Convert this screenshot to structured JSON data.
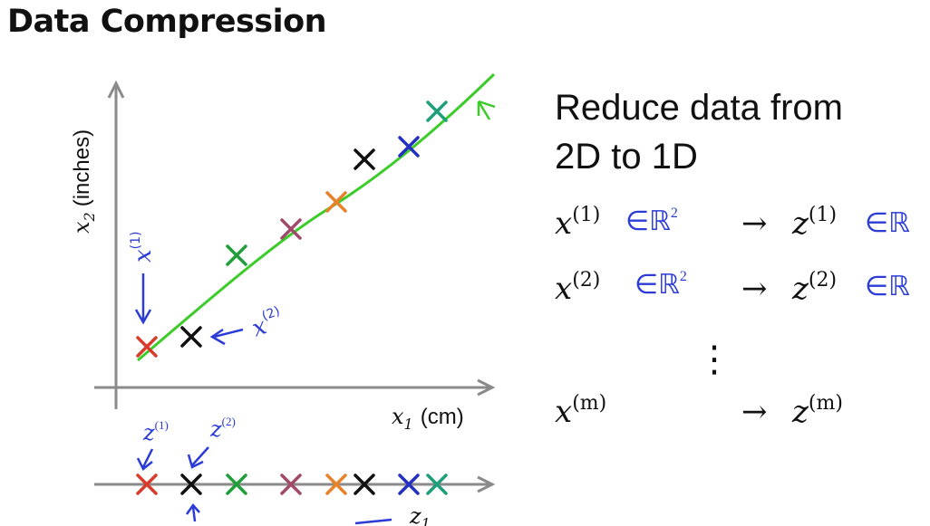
{
  "title": "Data Compression",
  "plot": {
    "y_label_var": "x",
    "y_label_sub": "2",
    "y_label_unit": "(inches)",
    "x_label_var": "x",
    "x_label_sub": "1",
    "x_label_unit": "(cm)",
    "z_axis_label_var": "z",
    "z_axis_label_sub": "1"
  },
  "annotations": {
    "x1_var": "x",
    "x1_sup": "(1)",
    "x2_var": "x",
    "x2_sup": "(2)",
    "z1_var": "z",
    "z1_sup": "(1)",
    "z2_var": "z",
    "z2_sup": "(2)"
  },
  "text": {
    "line1": "Reduce data from",
    "line2": "2D to 1D",
    "rows": [
      {
        "x": "x",
        "sup": "(1)",
        "domain": "∈ℝ",
        "dsup": "2",
        "arrow": "→",
        "z": "z",
        "zsup": "(1)",
        "zdomain": "∈ℝ"
      },
      {
        "x": "x",
        "sup": "(2)",
        "domain": "∈ℝ",
        "dsup": "2",
        "arrow": "→",
        "z": "z",
        "zsup": "(2)",
        "zdomain": "∈ℝ"
      },
      {
        "x": "x",
        "sup": "(m)",
        "domain": "",
        "dsup": "",
        "arrow": "→",
        "z": "z",
        "zsup": "(m)",
        "zdomain": ""
      }
    ],
    "dots": "⋮"
  },
  "colors": {
    "ink_blue": "#2a3bd6",
    "line_green": "#3ccc2a",
    "axis_gray": "#8a8a8a",
    "red": "#d93a2a",
    "black": "#111111",
    "green": "#1f9e3a",
    "purple": "#a04a6a",
    "orange": "#e8822a",
    "blue": "#2330c0",
    "teal": "#1f9e7a"
  }
}
